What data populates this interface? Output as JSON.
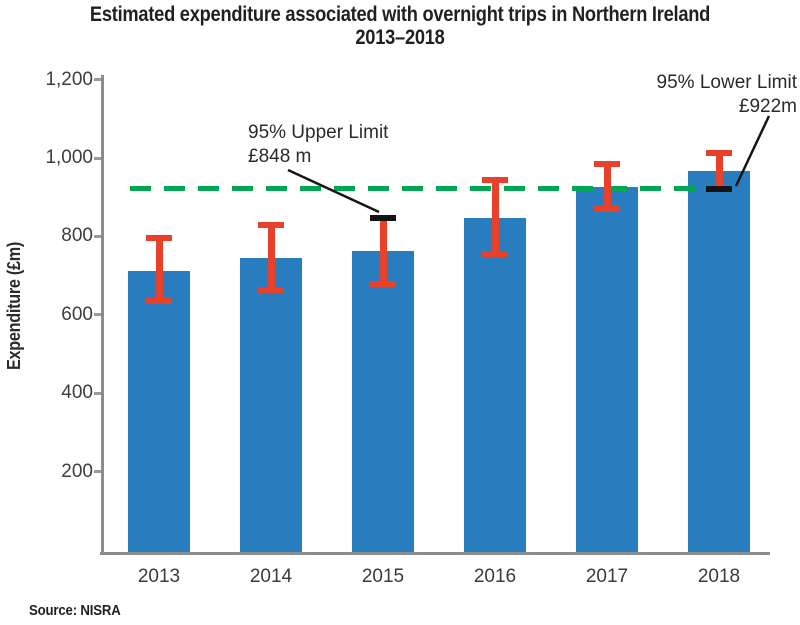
{
  "title": {
    "line1": "Estimated expenditure associated with overnight trips in Northern Ireland",
    "line2": "2013–2018"
  },
  "source": "Source: NISRA",
  "chart_data": {
    "type": "bar",
    "title": "Estimated expenditure associated with overnight trips in Northern Ireland 2013–2018",
    "xlabel": "",
    "ylabel": "Expenditure (£m)",
    "categories": [
      "2013",
      "2014",
      "2015",
      "2016",
      "2017",
      "2018"
    ],
    "values": [
      712,
      745,
      762,
      848,
      926,
      968
    ],
    "error_low": [
      635,
      662,
      678,
      755,
      870,
      922
    ],
    "error_high": [
      795,
      828,
      848,
      945,
      985,
      1014
    ],
    "ylim": [
      0,
      1220
    ],
    "yticks": [
      200,
      400,
      600,
      800,
      1000,
      1200
    ],
    "ytick_labels": [
      "200",
      "400",
      "600",
      "800",
      "1,000",
      "1,200"
    ],
    "grid": "off",
    "legend": "none",
    "reference_line": {
      "value": 922,
      "style": "dashed"
    },
    "highlighted_caps": [
      {
        "bar": 2,
        "end": "high",
        "note": "2015 upper limit cap drawn in black"
      },
      {
        "bar": 5,
        "end": "low",
        "note": "2018 lower limit cap drawn in black"
      }
    ],
    "annotations": [
      {
        "line1": "95% Upper Limit",
        "line2": "£848 m",
        "target": "2015 upper error cap"
      },
      {
        "line1": "95% Lower Limit",
        "line2": "£922m",
        "target": "2018 lower error cap"
      }
    ],
    "colors": {
      "bar": "#287dbe",
      "error": "#e8402b",
      "highlight_cap": "#141414",
      "reference": "#00a651",
      "axis": "#8c8c8c",
      "text": "#231f20"
    }
  }
}
